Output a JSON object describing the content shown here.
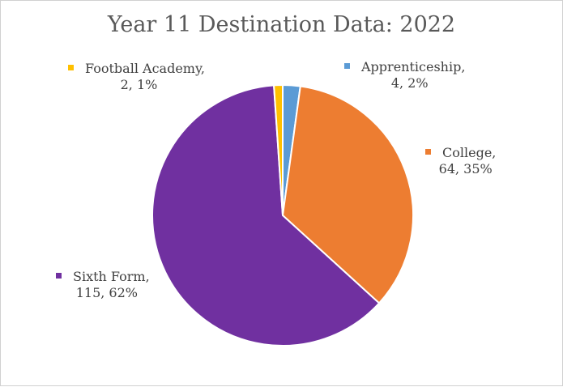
{
  "chart_data": {
    "type": "pie",
    "title": "Year 11 Destination Data: 2022",
    "slices": [
      {
        "name": "Apprenticeship",
        "value": 4,
        "percent": "2%",
        "color": "#5b9bd5"
      },
      {
        "name": "College",
        "value": 64,
        "percent": "35%",
        "color": "#ed7d31"
      },
      {
        "name": "Sixth Form",
        "value": 115,
        "percent": "62%",
        "color": "#7030a0"
      },
      {
        "name": "Football Academy",
        "value": 2,
        "percent": "1%",
        "color": "#ffc000"
      }
    ],
    "labels": {
      "football": {
        "name": "Football Academy,",
        "detail": "2, 1%"
      },
      "apprenticeship": {
        "name": "Apprenticeship,",
        "detail": "4, 2%"
      },
      "college": {
        "name": "College,",
        "detail": "64, 35%"
      },
      "sixth_form": {
        "name": "Sixth Form,",
        "detail": "115, 62%"
      }
    }
  }
}
